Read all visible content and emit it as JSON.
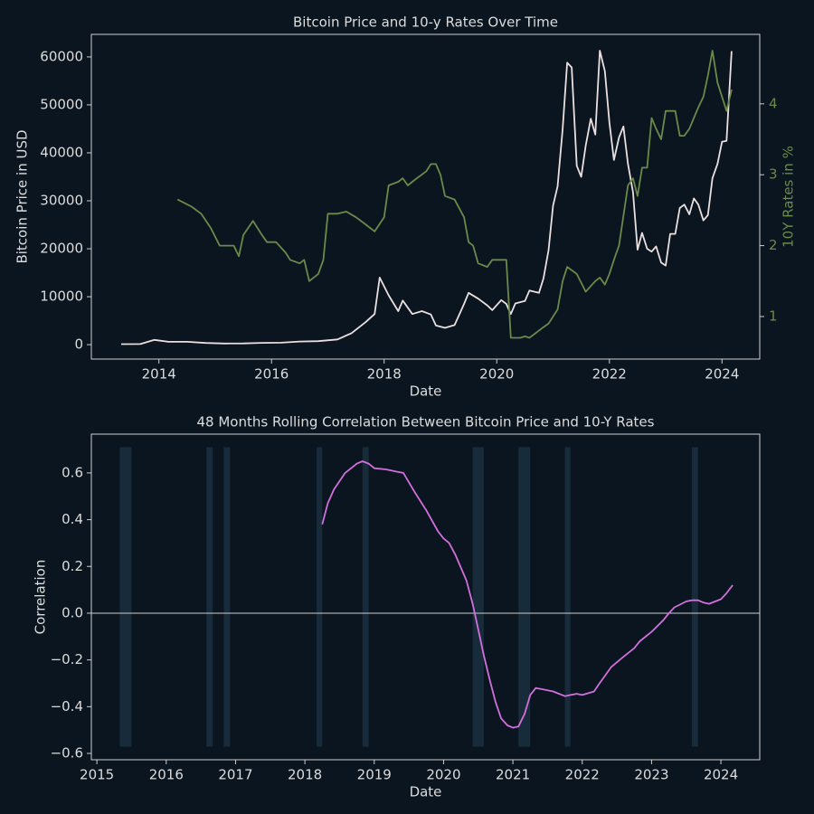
{
  "chart_data": [
    {
      "type": "line",
      "title": "Bitcoin Price and 10-y Rates Over Time",
      "x_label": "Date",
      "y_label": "Bitcoin Price in USD",
      "y2_label": "10Y Rates in %",
      "xlim": [
        2012.8,
        2024.67
      ],
      "xticks": [
        2014,
        2016,
        2018,
        2020,
        2022,
        2024
      ],
      "ylim": [
        -3000,
        64700
      ],
      "yticks": [
        0,
        10000,
        20000,
        30000,
        40000,
        50000,
        60000
      ],
      "y2lim": [
        0.4,
        4.98
      ],
      "y2ticks": [
        1,
        2,
        3,
        4
      ],
      "series": [
        {
          "color": "#ebe0e0",
          "x": [
            2013.33,
            2013.67,
            2013.92,
            2014.17,
            2014.5,
            2014.83,
            2015.17,
            2015.5,
            2015.83,
            2016.17,
            2016.5,
            2016.83,
            2017.17,
            2017.42,
            2017.67,
            2017.83,
            2017.92,
            2018.08,
            2018.25,
            2018.33,
            2018.5,
            2018.67,
            2018.83,
            2018.92,
            2019.08,
            2019.25,
            2019.42,
            2019.5,
            2019.67,
            2019.83,
            2019.92,
            2020.08,
            2020.17,
            2020.25,
            2020.33,
            2020.5,
            2020.58,
            2020.75,
            2020.83,
            2020.92,
            2021.0,
            2021.08,
            2021.17,
            2021.25,
            2021.33,
            2021.42,
            2021.5,
            2021.58,
            2021.67,
            2021.75,
            2021.83,
            2021.92,
            2022.0,
            2022.08,
            2022.17,
            2022.25,
            2022.33,
            2022.42,
            2022.5,
            2022.58,
            2022.67,
            2022.75,
            2022.83,
            2022.92,
            2023.0,
            2023.08,
            2023.17,
            2023.25,
            2023.33,
            2023.42,
            2023.5,
            2023.58,
            2023.67,
            2023.75,
            2023.83,
            2023.92,
            2024.0,
            2024.08,
            2024.17
          ],
          "values": [
            120,
            130,
            1000,
            600,
            600,
            350,
            250,
            260,
            370,
            420,
            650,
            740,
            1100,
            2400,
            4700,
            6400,
            14000,
            10300,
            7000,
            9200,
            6400,
            7000,
            6300,
            4000,
            3500,
            4100,
            8500,
            10800,
            9600,
            8200,
            7200,
            9300,
            8500,
            6400,
            8600,
            9100,
            11300,
            10800,
            13800,
            19700,
            29000,
            33000,
            45000,
            58800,
            57800,
            37300,
            35000,
            41500,
            47100,
            43800,
            61300,
            57000,
            46300,
            38500,
            43200,
            45500,
            37700,
            31800,
            19800,
            23300,
            20000,
            19400,
            20500,
            17100,
            16500,
            23100,
            23100,
            28500,
            29200,
            27200,
            30500,
            29200,
            25900,
            27000,
            34700,
            37700,
            42300,
            42500,
            61200
          ]
        },
        {
          "color": "#6b8a4a",
          "axis": "y2",
          "x": [
            2014.33,
            2014.58,
            2014.75,
            2014.92,
            2015.08,
            2015.33,
            2015.42,
            2015.5,
            2015.67,
            2015.83,
            2015.92,
            2016.08,
            2016.25,
            2016.33,
            2016.5,
            2016.58,
            2016.67,
            2016.83,
            2016.92,
            2017.0,
            2017.17,
            2017.33,
            2017.5,
            2017.67,
            2017.83,
            2018.0,
            2018.08,
            2018.25,
            2018.33,
            2018.42,
            2018.5,
            2018.58,
            2018.75,
            2018.83,
            2018.92,
            2019.0,
            2019.08,
            2019.25,
            2019.42,
            2019.5,
            2019.58,
            2019.67,
            2019.83,
            2019.92,
            2020.0,
            2020.17,
            2020.25,
            2020.42,
            2020.5,
            2020.58,
            2020.83,
            2020.92,
            2021.08,
            2021.17,
            2021.25,
            2021.42,
            2021.58,
            2021.75,
            2021.83,
            2021.92,
            2022.0,
            2022.08,
            2022.17,
            2022.33,
            2022.42,
            2022.5,
            2022.58,
            2022.67,
            2022.75,
            2022.83,
            2022.92,
            2023.0,
            2023.17,
            2023.25,
            2023.33,
            2023.42,
            2023.58,
            2023.67,
            2023.75,
            2023.83,
            2023.92,
            2024.0,
            2024.08,
            2024.17
          ],
          "values": [
            2.65,
            2.55,
            2.45,
            2.25,
            2.0,
            2.0,
            1.85,
            2.15,
            2.35,
            2.15,
            2.05,
            2.05,
            1.9,
            1.8,
            1.75,
            1.8,
            1.5,
            1.6,
            1.8,
            2.45,
            2.45,
            2.48,
            2.4,
            2.3,
            2.2,
            2.4,
            2.85,
            2.9,
            2.95,
            2.85,
            2.9,
            2.95,
            3.05,
            3.15,
            3.15,
            3.0,
            2.7,
            2.65,
            2.4,
            2.05,
            2.0,
            1.75,
            1.7,
            1.8,
            1.8,
            1.8,
            0.7,
            0.7,
            0.72,
            0.7,
            0.85,
            0.9,
            1.1,
            1.5,
            1.7,
            1.6,
            1.35,
            1.5,
            1.55,
            1.45,
            1.6,
            1.8,
            2.0,
            2.85,
            2.95,
            2.7,
            3.1,
            3.1,
            3.8,
            3.65,
            3.5,
            3.9,
            3.9,
            3.55,
            3.55,
            3.65,
            3.95,
            4.1,
            4.4,
            4.75,
            4.3,
            4.1,
            3.9,
            4.2
          ]
        }
      ]
    },
    {
      "type": "line",
      "title": "48 Months Rolling Correlation Between Bitcoin Price and 10-Y Rates",
      "x_label": "Date",
      "y_label": "Correlation",
      "xlim": [
        2014.92,
        2024.56
      ],
      "xticks": [
        2015,
        2016,
        2017,
        2018,
        2019,
        2020,
        2021,
        2022,
        2023,
        2024
      ],
      "ylim": [
        -0.627,
        0.766
      ],
      "yticks": [
        {
          "value": -0.6,
          "label": "−0.6"
        },
        {
          "value": -0.4,
          "label": "−0.4"
        },
        {
          "value": -0.2,
          "label": "−0.2"
        },
        {
          "value": 0,
          "label": "0.0"
        },
        0.2,
        0.4,
        0.6
      ],
      "hline": 0,
      "span_color": "#172b3b",
      "spans": [
        [
          2015.33,
          2015.5
        ],
        [
          2016.58,
          2016.67
        ],
        [
          2016.83,
          2016.92
        ],
        [
          2018.17,
          2018.25
        ],
        [
          2018.83,
          2018.92
        ],
        [
          2020.42,
          2020.58
        ],
        [
          2021.08,
          2021.25
        ],
        [
          2021.75,
          2021.83
        ],
        [
          2023.58,
          2023.67
        ]
      ],
      "series": [
        {
          "color": "#d36fdc",
          "x": [
            2018.25,
            2018.33,
            2018.42,
            2018.58,
            2018.75,
            2018.83,
            2018.92,
            2019.0,
            2019.17,
            2019.33,
            2019.42,
            2019.58,
            2019.75,
            2019.92,
            2020.0,
            2020.08,
            2020.17,
            2020.33,
            2020.42,
            2020.5,
            2020.58,
            2020.67,
            2020.75,
            2020.83,
            2020.92,
            2021.0,
            2021.08,
            2021.17,
            2021.25,
            2021.33,
            2021.42,
            2021.58,
            2021.75,
            2021.83,
            2021.92,
            2022.0,
            2022.17,
            2022.25,
            2022.42,
            2022.58,
            2022.75,
            2022.83,
            2023.0,
            2023.17,
            2023.25,
            2023.33,
            2023.5,
            2023.58,
            2023.67,
            2023.75,
            2023.83,
            2024.0,
            2024.08,
            2024.17
          ],
          "values": [
            0.38,
            0.47,
            0.53,
            0.6,
            0.64,
            0.65,
            0.64,
            0.62,
            0.615,
            0.605,
            0.6,
            0.52,
            0.44,
            0.35,
            0.32,
            0.3,
            0.25,
            0.14,
            0.04,
            -0.07,
            -0.18,
            -0.29,
            -0.38,
            -0.45,
            -0.48,
            -0.49,
            -0.485,
            -0.43,
            -0.35,
            -0.32,
            -0.325,
            -0.335,
            -0.355,
            -0.35,
            -0.345,
            -0.35,
            -0.335,
            -0.3,
            -0.23,
            -0.19,
            -0.15,
            -0.12,
            -0.08,
            -0.03,
            0.0,
            0.025,
            0.05,
            0.055,
            0.055,
            0.045,
            0.04,
            0.06,
            0.085,
            0.12
          ]
        }
      ]
    }
  ]
}
